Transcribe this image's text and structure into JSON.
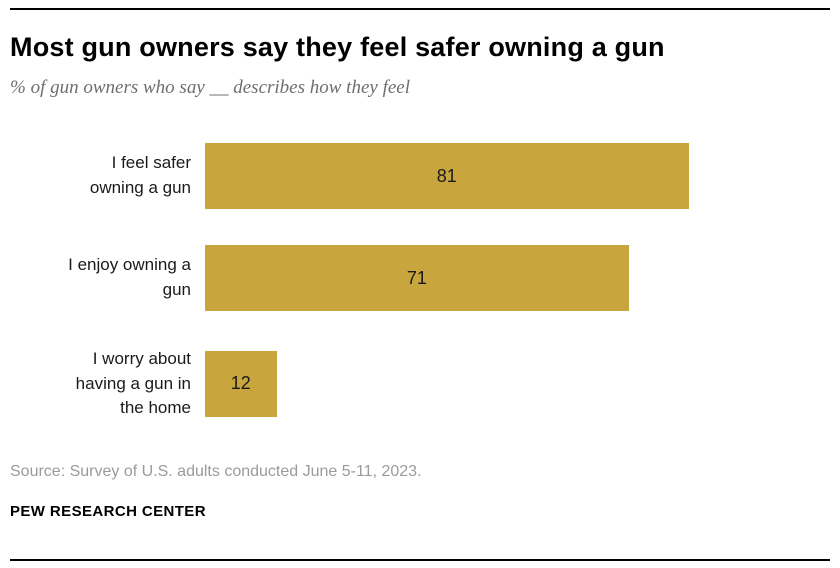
{
  "header": {
    "title": "Most gun owners say they feel safer owning a gun",
    "subtitle": "% of gun owners who say __ describes how they feel"
  },
  "chart_data": {
    "type": "bar",
    "orientation": "horizontal",
    "categories": [
      "I feel safer owning a gun",
      "I enjoy owning a gun",
      "I worry about having a gun in the home"
    ],
    "values": [
      81,
      71,
      12
    ],
    "value_labels": [
      "81",
      "71",
      "12"
    ],
    "xlim": [
      0,
      100
    ],
    "bar_color": "#C9A53E",
    "value_label_color": "#1a1a1a",
    "grid": false,
    "legend": false,
    "title": "Most gun owners say they feel safer owning a gun",
    "xlabel": "",
    "ylabel": ""
  },
  "footer": {
    "source": "Source: Survey of U.S. adults conducted June 5-11, 2023.",
    "brand": "PEW RESEARCH CENTER"
  }
}
